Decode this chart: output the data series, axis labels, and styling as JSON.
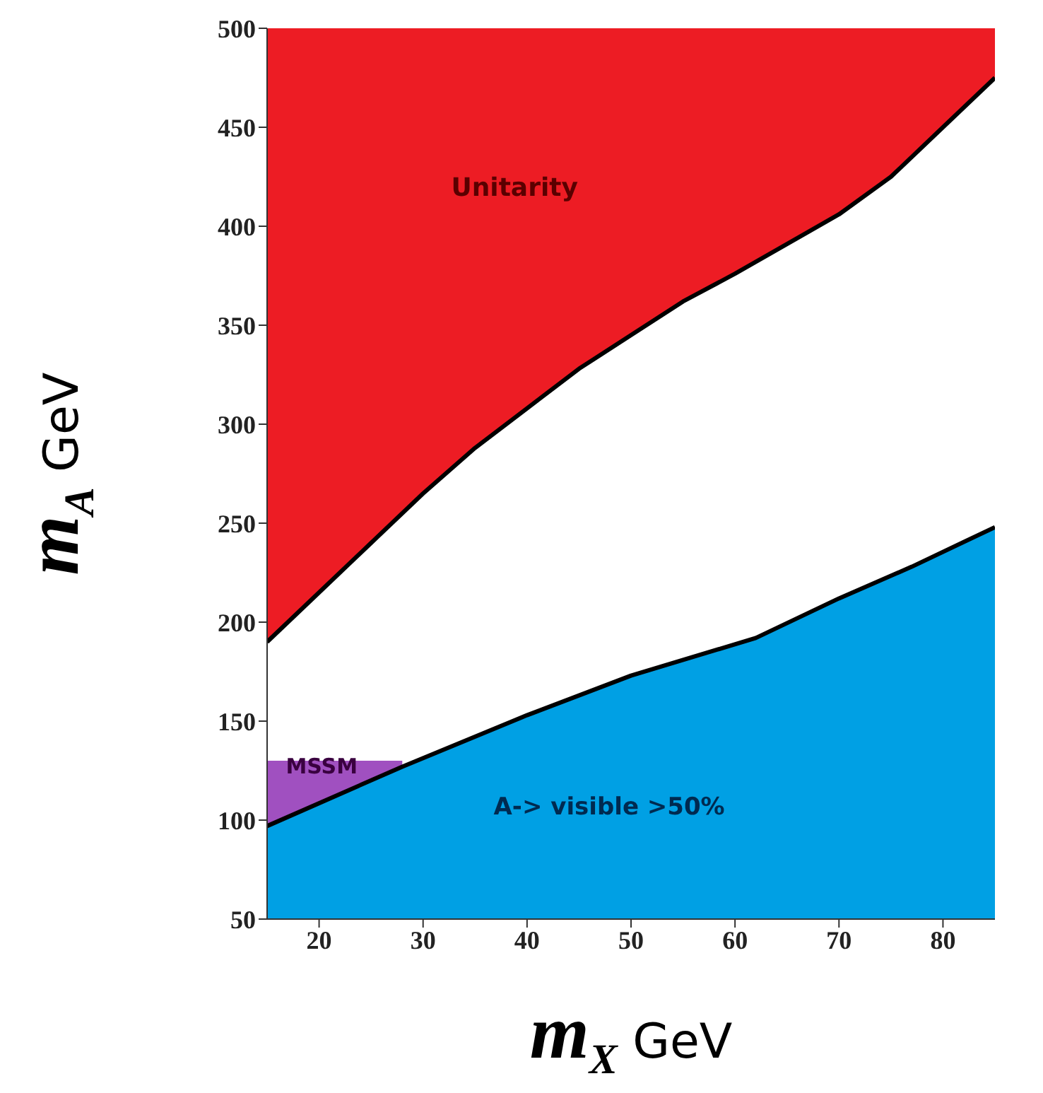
{
  "chart_data": {
    "type": "area",
    "xlabel": "m$_{X}$ GeV",
    "ylabel": "m$_{A}$ GeV",
    "xlim": [
      15,
      85
    ],
    "xticks": [
      20,
      30,
      40,
      50,
      60,
      70,
      80
    ],
    "ylim": [
      50,
      500
    ],
    "yticks": [
      50,
      100,
      150,
      200,
      250,
      300,
      350,
      400,
      450,
      500
    ],
    "grid": false,
    "series": [
      {
        "color": "#ed1c24",
        "x": [
          15,
          85
        ],
        "values": [
          500,
          500
        ]
      },
      {
        "color": "#ffffff",
        "line_style": "solid",
        "x": [
          15,
          20,
          25,
          30,
          35,
          40,
          45,
          50,
          55,
          60,
          67,
          70,
          75,
          80,
          85
        ],
        "values": [
          190,
          215,
          240,
          265,
          288,
          308,
          328,
          345,
          362,
          376,
          397,
          406,
          425,
          450,
          475
        ]
      },
      {
        "color": "#a050c0",
        "x": [
          15,
          28
        ],
        "values": [
          130,
          130
        ]
      },
      {
        "color": "#00a0e4",
        "line_style": "solid",
        "x": [
          15,
          28,
          40,
          50,
          62,
          70,
          77,
          85
        ],
        "values": [
          97,
          127,
          153,
          173,
          192,
          212,
          228,
          248
        ]
      }
    ],
    "annotations": [
      "Unitarity",
      "MSSM",
      "A-> visible >50%"
    ]
  }
}
